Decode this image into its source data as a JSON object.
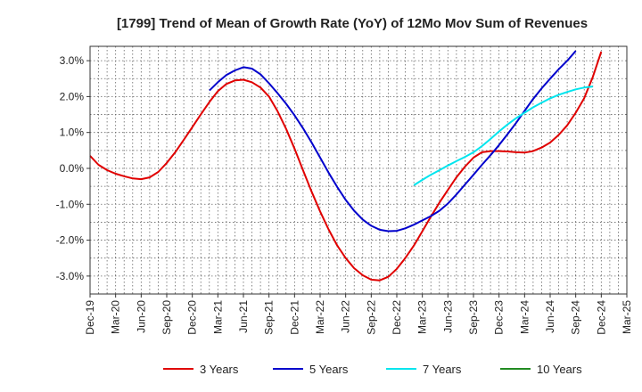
{
  "chart_data": {
    "type": "line",
    "title": "[1799]  Trend of Mean of Growth Rate (YoY) of 12Mo Mov Sum of Revenues",
    "xlabel": "",
    "ylabel": "",
    "ylim": [
      -3.5,
      3.4
    ],
    "x_categories": [
      "Dec-19",
      "Mar-20",
      "Jun-20",
      "Sep-20",
      "Dec-20",
      "Mar-21",
      "Jun-21",
      "Sep-21",
      "Dec-21",
      "Mar-22",
      "Jun-22",
      "Sep-22",
      "Dec-22",
      "Mar-23",
      "Jun-23",
      "Sep-23",
      "Dec-23",
      "Mar-24",
      "Jun-24",
      "Sep-24",
      "Dec-24",
      "Mar-25"
    ],
    "y_ticks": [
      3.0,
      2.0,
      1.0,
      0.0,
      -1.0,
      -2.0,
      -3.0
    ],
    "y_tick_labels": [
      "3.0%",
      "2.0%",
      "1.0%",
      "0.0%",
      "-1.0%",
      "-2.0%",
      "-3.0%"
    ],
    "series": [
      {
        "name": "3 Years",
        "color": "#e00000",
        "points": [
          [
            0,
            0.35
          ],
          [
            0.33,
            0.1
          ],
          [
            0.67,
            -0.05
          ],
          [
            1,
            -0.15
          ],
          [
            1.33,
            -0.22
          ],
          [
            1.67,
            -0.28
          ],
          [
            2,
            -0.3
          ],
          [
            2.33,
            -0.25
          ],
          [
            2.67,
            -0.1
          ],
          [
            3,
            0.15
          ],
          [
            3.33,
            0.45
          ],
          [
            3.67,
            0.8
          ],
          [
            4,
            1.15
          ],
          [
            4.33,
            1.5
          ],
          [
            4.67,
            1.85
          ],
          [
            5,
            2.15
          ],
          [
            5.33,
            2.35
          ],
          [
            5.67,
            2.45
          ],
          [
            6,
            2.47
          ],
          [
            6.33,
            2.4
          ],
          [
            6.67,
            2.25
          ],
          [
            7,
            2.0
          ],
          [
            7.33,
            1.6
          ],
          [
            7.67,
            1.1
          ],
          [
            8,
            0.55
          ],
          [
            8.33,
            -0.05
          ],
          [
            8.67,
            -0.65
          ],
          [
            9,
            -1.2
          ],
          [
            9.33,
            -1.7
          ],
          [
            9.67,
            -2.15
          ],
          [
            10,
            -2.5
          ],
          [
            10.33,
            -2.78
          ],
          [
            10.67,
            -2.98
          ],
          [
            11,
            -3.1
          ],
          [
            11.33,
            -3.12
          ],
          [
            11.67,
            -3.02
          ],
          [
            12,
            -2.8
          ],
          [
            12.33,
            -2.5
          ],
          [
            12.67,
            -2.15
          ],
          [
            13,
            -1.75
          ],
          [
            13.33,
            -1.35
          ],
          [
            13.67,
            -0.95
          ],
          [
            14,
            -0.6
          ],
          [
            14.33,
            -0.25
          ],
          [
            14.67,
            0.05
          ],
          [
            15,
            0.3
          ],
          [
            15.33,
            0.45
          ],
          [
            15.67,
            0.48
          ],
          [
            16,
            0.48
          ],
          [
            16.33,
            0.47
          ],
          [
            16.67,
            0.45
          ],
          [
            17,
            0.44
          ],
          [
            17.33,
            0.48
          ],
          [
            17.67,
            0.58
          ],
          [
            18,
            0.72
          ],
          [
            18.33,
            0.93
          ],
          [
            18.67,
            1.2
          ],
          [
            19,
            1.55
          ],
          [
            19.33,
            1.95
          ],
          [
            19.67,
            2.55
          ],
          [
            20,
            3.25
          ]
        ]
      },
      {
        "name": "5 Years",
        "color": "#0000cc",
        "points": [
          [
            4.67,
            2.17
          ],
          [
            5,
            2.4
          ],
          [
            5.33,
            2.6
          ],
          [
            5.67,
            2.73
          ],
          [
            6,
            2.82
          ],
          [
            6.33,
            2.78
          ],
          [
            6.67,
            2.62
          ],
          [
            7,
            2.37
          ],
          [
            7.33,
            2.1
          ],
          [
            7.67,
            1.8
          ],
          [
            8,
            1.48
          ],
          [
            8.33,
            1.12
          ],
          [
            8.67,
            0.72
          ],
          [
            9,
            0.3
          ],
          [
            9.33,
            -0.12
          ],
          [
            9.67,
            -0.52
          ],
          [
            10,
            -0.88
          ],
          [
            10.33,
            -1.18
          ],
          [
            10.67,
            -1.43
          ],
          [
            11,
            -1.6
          ],
          [
            11.33,
            -1.71
          ],
          [
            11.67,
            -1.75
          ],
          [
            12,
            -1.74
          ],
          [
            12.33,
            -1.67
          ],
          [
            12.67,
            -1.57
          ],
          [
            13,
            -1.45
          ],
          [
            13.33,
            -1.33
          ],
          [
            13.67,
            -1.18
          ],
          [
            14,
            -0.98
          ],
          [
            14.33,
            -0.73
          ],
          [
            14.67,
            -0.45
          ],
          [
            15,
            -0.18
          ],
          [
            15.33,
            0.1
          ],
          [
            15.67,
            0.37
          ],
          [
            16,
            0.65
          ],
          [
            16.33,
            0.95
          ],
          [
            16.67,
            1.27
          ],
          [
            17,
            1.6
          ],
          [
            17.33,
            1.93
          ],
          [
            17.67,
            2.23
          ],
          [
            18,
            2.5
          ],
          [
            18.33,
            2.76
          ],
          [
            18.67,
            3.0
          ],
          [
            19,
            3.27
          ]
        ]
      },
      {
        "name": "7 Years",
        "color": "#00e5ee",
        "points": [
          [
            12.67,
            -0.47
          ],
          [
            13,
            -0.32
          ],
          [
            13.33,
            -0.18
          ],
          [
            13.67,
            -0.05
          ],
          [
            14,
            0.08
          ],
          [
            14.33,
            0.2
          ],
          [
            14.67,
            0.32
          ],
          [
            15,
            0.45
          ],
          [
            15.33,
            0.62
          ],
          [
            15.67,
            0.82
          ],
          [
            16,
            1.03
          ],
          [
            16.33,
            1.22
          ],
          [
            16.67,
            1.4
          ],
          [
            17,
            1.55
          ],
          [
            17.33,
            1.7
          ],
          [
            17.67,
            1.83
          ],
          [
            18,
            1.95
          ],
          [
            18.33,
            2.05
          ],
          [
            18.67,
            2.13
          ],
          [
            19,
            2.2
          ],
          [
            19.33,
            2.25
          ],
          [
            19.67,
            2.28
          ]
        ]
      },
      {
        "name": "10 Years",
        "color": "#228b22",
        "points": []
      }
    ]
  }
}
